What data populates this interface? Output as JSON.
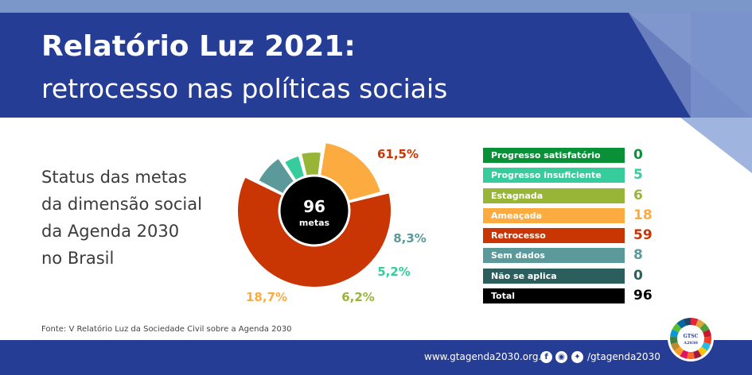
{
  "header": {
    "title_line1": "Relatório Luz 2021:",
    "title_line2": "retrocesso nas políticas sociais"
  },
  "subtitle": "Status das metas\nda dimensão social\nda Agenda 2030\nno Brasil",
  "chart_data": {
    "type": "pie",
    "center_value": "96",
    "center_label": "metas",
    "slices": [
      {
        "label": "Retrocesso",
        "value": 59,
        "percent_label": "61,5%",
        "color": "#c93503"
      },
      {
        "label": "Sem dados",
        "value": 8,
        "percent_label": "8,3%",
        "color": "#5b999b"
      },
      {
        "label": "Progresso insuficiente",
        "value": 5,
        "percent_label": "5,2%",
        "color": "#36cc9b"
      },
      {
        "label": "Estagnada",
        "value": 6,
        "percent_label": "6,2%",
        "color": "#98b537"
      },
      {
        "label": "Ameaçada",
        "value": 18,
        "percent_label": "18,7%",
        "color": "#fbab40"
      }
    ]
  },
  "legend": [
    {
      "label": "Progresso satisfatório",
      "count": "0",
      "color": "#0a9138"
    },
    {
      "label": "Progresso insuficiente",
      "count": "5",
      "color": "#36cc9b"
    },
    {
      "label": "Estagnada",
      "count": "6",
      "color": "#98b537"
    },
    {
      "label": "Ameaçada",
      "count": "18",
      "color": "#fbab40"
    },
    {
      "label": "Retrocesso",
      "count": "59",
      "color": "#c93503"
    },
    {
      "label": "Sem dados",
      "count": "8",
      "color": "#5b999b"
    },
    {
      "label": "Não se aplica",
      "count": "0",
      "color": "#2b5e5d"
    },
    {
      "label": "Total",
      "count": "96",
      "color": "#000000"
    }
  ],
  "source": "Fonte: V Relatório Luz da Sociedade Civil sobre a Agenda 2030",
  "footer": {
    "url": "www.gtagenda2030.org.br",
    "handle": "/gtagenda2030",
    "icons": [
      "facebook-icon",
      "instagram-icon",
      "twitter-icon"
    ]
  },
  "logo": {
    "text_line1": "GTSC",
    "text_line2": "A2030"
  }
}
